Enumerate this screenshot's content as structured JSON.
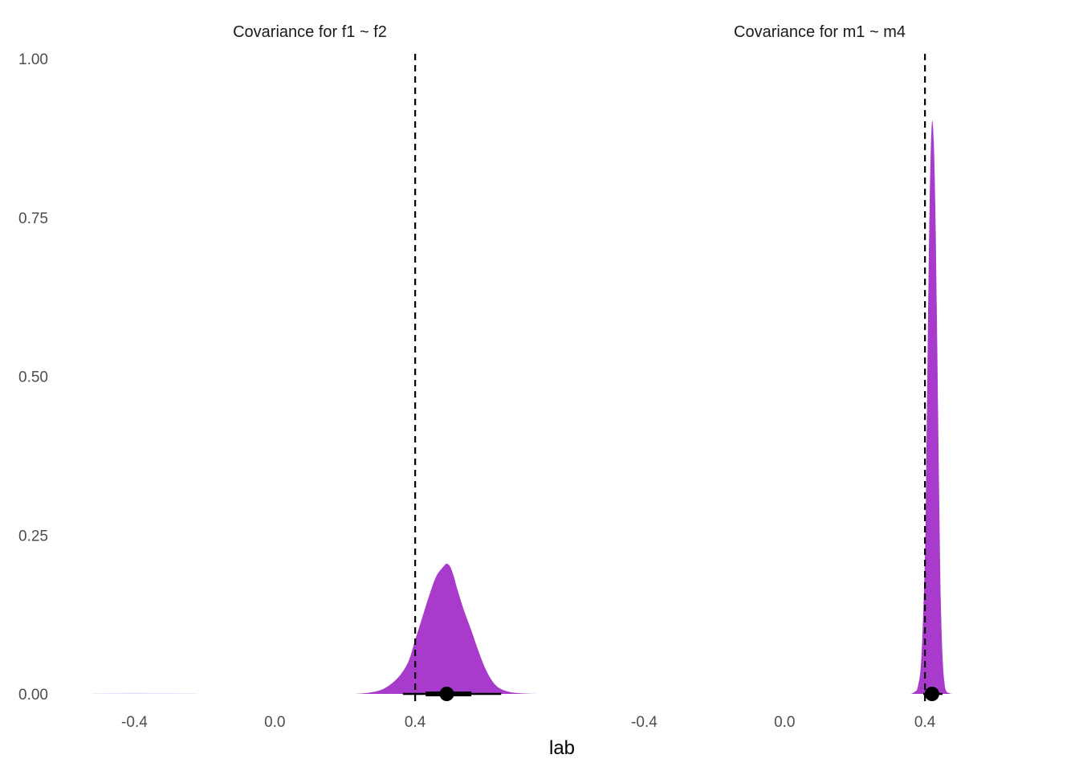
{
  "chart_data": {
    "type": "area",
    "xlabel": "lab",
    "ylabel": "",
    "ylim": [
      0,
      1
    ],
    "y_ticks": [
      "0.00",
      "0.25",
      "0.50",
      "0.75",
      "1.00"
    ],
    "grid": false,
    "legend": "none",
    "colors": {
      "density_fill": "#A83ACC",
      "faint_fill": "#E6E0F8",
      "reference_line": "#000000",
      "point": "#000000"
    },
    "panels": [
      {
        "title": "Covariance for f1 ~ f2",
        "xlim": [
          -0.6,
          0.8
        ],
        "x_ticks": [
          "-0.4",
          "0.0",
          "0.4"
        ],
        "x_tick_values": [
          -0.4,
          0.0,
          0.4
        ],
        "reference_x": 0.4,
        "density": {
          "x": [
            0.23,
            0.27,
            0.31,
            0.35,
            0.38,
            0.4,
            0.42,
            0.44,
            0.46,
            0.48,
            0.49,
            0.5,
            0.51,
            0.52,
            0.54,
            0.56,
            0.58,
            0.6,
            0.62,
            0.64,
            0.67,
            0.7,
            0.75,
            0.78
          ],
          "y": [
            0.0,
            0.002,
            0.008,
            0.025,
            0.05,
            0.085,
            0.12,
            0.155,
            0.185,
            0.2,
            0.205,
            0.2,
            0.185,
            0.165,
            0.13,
            0.1,
            0.068,
            0.04,
            0.02,
            0.009,
            0.003,
            0.001,
            0.0,
            0.0
          ]
        },
        "faint_density": {
          "x": [
            -0.52,
            -0.46,
            -0.42,
            -0.4,
            -0.38,
            -0.34,
            -0.28,
            -0.22
          ],
          "y": [
            0.0,
            0.0005,
            0.001,
            0.0015,
            0.001,
            0.0007,
            0.0003,
            0.0
          ]
        },
        "point_estimate": 0.49,
        "interval_thin": [
          0.365,
          0.645
        ],
        "interval_thick": [
          0.43,
          0.56
        ]
      },
      {
        "title": "Covariance for m1 ~ m4",
        "xlim": [
          -0.6,
          0.8
        ],
        "x_ticks": [
          "-0.4",
          "0.0",
          "0.4"
        ],
        "x_tick_values": [
          -0.4,
          0.0,
          0.4
        ],
        "reference_x": 0.4,
        "density": {
          "x": [
            0.36,
            0.37,
            0.38,
            0.39,
            0.4,
            0.405,
            0.41,
            0.415,
            0.42,
            0.425,
            0.43,
            0.435,
            0.44,
            0.445,
            0.45,
            0.455,
            0.46,
            0.47,
            0.48
          ],
          "y": [
            0.0,
            0.003,
            0.012,
            0.06,
            0.22,
            0.42,
            0.65,
            0.82,
            0.9,
            0.87,
            0.75,
            0.55,
            0.33,
            0.15,
            0.06,
            0.02,
            0.005,
            0.001,
            0.0
          ]
        },
        "point_estimate": 0.42,
        "interval_thin": [
          0.395,
          0.45
        ],
        "interval_thick": [
          0.41,
          0.435
        ]
      }
    ]
  }
}
